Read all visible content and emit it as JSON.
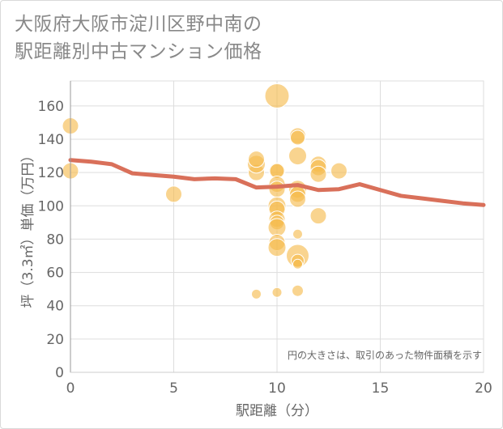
{
  "chart_data": {
    "type": "scatter",
    "title": [
      "大阪府大阪市淀川区野中南の",
      "駅距離別中古マンション価格"
    ],
    "xlabel": "駅距離（分）",
    "ylabel": "坪（3.3㎡）単価（万円）",
    "xlim": [
      0,
      20
    ],
    "ylim": [
      0,
      175
    ],
    "x_ticks": [
      0,
      5,
      10,
      15,
      20
    ],
    "y_ticks": [
      0,
      20,
      40,
      60,
      80,
      100,
      120,
      140,
      160
    ],
    "grid": true,
    "annotation": "円の大きさは、取引のあった物件面積を示す",
    "colors": {
      "bubble": "#f5b94a",
      "trend": "#d9705a",
      "grid": "#dddddd"
    },
    "bubbles": [
      {
        "x": 0,
        "y": 148,
        "size": 10
      },
      {
        "x": 0,
        "y": 121,
        "size": 10
      },
      {
        "x": 5,
        "y": 107,
        "size": 10
      },
      {
        "x": 9,
        "y": 47,
        "size": 6
      },
      {
        "x": 9,
        "y": 120,
        "size": 10
      },
      {
        "x": 9,
        "y": 125,
        "size": 11
      },
      {
        "x": 9,
        "y": 128,
        "size": 10
      },
      {
        "x": 10,
        "y": 166,
        "size": 15
      },
      {
        "x": 10,
        "y": 121,
        "size": 10
      },
      {
        "x": 10,
        "y": 121,
        "size": 9
      },
      {
        "x": 10,
        "y": 113,
        "size": 10
      },
      {
        "x": 10,
        "y": 110,
        "size": 10
      },
      {
        "x": 10,
        "y": 100,
        "size": 11
      },
      {
        "x": 10,
        "y": 98,
        "size": 10
      },
      {
        "x": 10,
        "y": 92,
        "size": 10
      },
      {
        "x": 10,
        "y": 90,
        "size": 9
      },
      {
        "x": 10,
        "y": 87,
        "size": 11
      },
      {
        "x": 10,
        "y": 78,
        "size": 10
      },
      {
        "x": 10,
        "y": 75,
        "size": 11
      },
      {
        "x": 10,
        "y": 48,
        "size": 6
      },
      {
        "x": 11,
        "y": 142,
        "size": 10
      },
      {
        "x": 11,
        "y": 141,
        "size": 9
      },
      {
        "x": 11,
        "y": 130,
        "size": 11
      },
      {
        "x": 11,
        "y": 110,
        "size": 11
      },
      {
        "x": 11,
        "y": 107,
        "size": 10
      },
      {
        "x": 11,
        "y": 104,
        "size": 10
      },
      {
        "x": 11,
        "y": 83,
        "size": 6
      },
      {
        "x": 11,
        "y": 70,
        "size": 14
      },
      {
        "x": 11,
        "y": 67,
        "size": 8
      },
      {
        "x": 11,
        "y": 65,
        "size": 6
      },
      {
        "x": 11,
        "y": 49,
        "size": 7
      },
      {
        "x": 12,
        "y": 125,
        "size": 10
      },
      {
        "x": 12,
        "y": 123,
        "size": 10
      },
      {
        "x": 12,
        "y": 119,
        "size": 10
      },
      {
        "x": 12,
        "y": 94,
        "size": 10
      },
      {
        "x": 13,
        "y": 121,
        "size": 10
      }
    ],
    "series": [
      {
        "name": "trend",
        "x": [
          0,
          1,
          2,
          3,
          4,
          5,
          6,
          7,
          8,
          9,
          10,
          11,
          12,
          13,
          14,
          15,
          16,
          17,
          18,
          19,
          20
        ],
        "y": [
          127.5,
          126.5,
          125,
          119.5,
          118.5,
          117.5,
          116,
          116.5,
          116,
          111,
          111.5,
          112.5,
          109.5,
          110,
          113,
          109.5,
          106,
          104.5,
          103,
          101.5,
          100.5
        ]
      }
    ]
  }
}
